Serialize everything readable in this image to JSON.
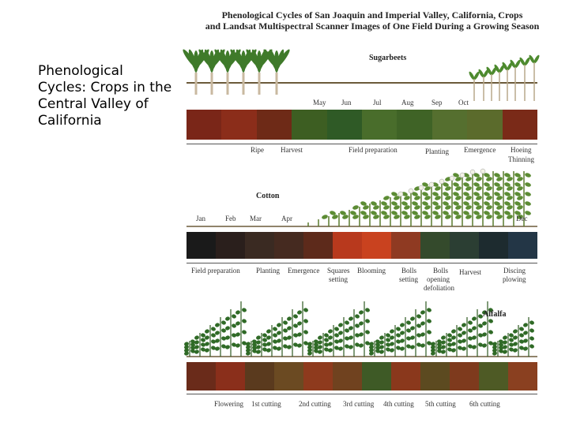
{
  "side": {
    "bold": "Phenological Cycles",
    "rest": ": Crops in the Central Valley of California"
  },
  "figure": {
    "title_line1": "Phenological Cycles of San Joaquin and Imperial Valley, California, Crops",
    "title_line2": "and Landsat Multispectral Scanner Images of One Field During a Growing Season",
    "sugarbeets": {
      "name": "Sugarbeets",
      "months": [
        "May",
        "Jun",
        "Jul",
        "Aug",
        "Sep",
        "Oct"
      ],
      "stages": [
        "Ripe",
        "Harvest",
        "Field preparation",
        "Planting",
        "Emergence",
        "Hoeing",
        "Thinning"
      ],
      "colors": [
        "#7a2618",
        "#8b2d1a",
        "#6e2a17",
        "#3d5e22",
        "#2f5a26",
        "#496d2b",
        "#3f6326",
        "#556f2f",
        "#5b6b2c",
        "#7a2a18"
      ]
    },
    "cotton": {
      "name": "Cotton",
      "months": [
        "Jan",
        "Feb",
        "Mar",
        "Apr",
        "Dec"
      ],
      "stages": [
        "Field preparation",
        "Planting",
        "Emergence",
        "Squares",
        "setting",
        "Blooming",
        "Bolls",
        "setting",
        "Bolls",
        "opening",
        "defoliation",
        "Harvest",
        "Discing",
        "plowing"
      ],
      "colors": [
        "#1a1a1a",
        "#2a1f1c",
        "#3a2a22",
        "#452a20",
        "#5d2a1b",
        "#b8391d",
        "#c9421f",
        "#8f3a22",
        "#344a2c",
        "#2b3e33",
        "#1d2b2f",
        "#233646"
      ]
    },
    "alfalfa": {
      "name": "Alfalfa",
      "stages": [
        "Flowering",
        "1st cutting",
        "2nd cutting",
        "3rd cutting",
        "4th cutting",
        "5th cutting",
        "6th cutting"
      ],
      "colors": [
        "#6a2b1a",
        "#8a2f1b",
        "#5a3a1e",
        "#6b4a22",
        "#8e3a1d",
        "#70421f",
        "#3e5a26",
        "#8a381c",
        "#5c4a20",
        "#7e3a1d",
        "#4e5a25",
        "#8a4020"
      ]
    }
  }
}
